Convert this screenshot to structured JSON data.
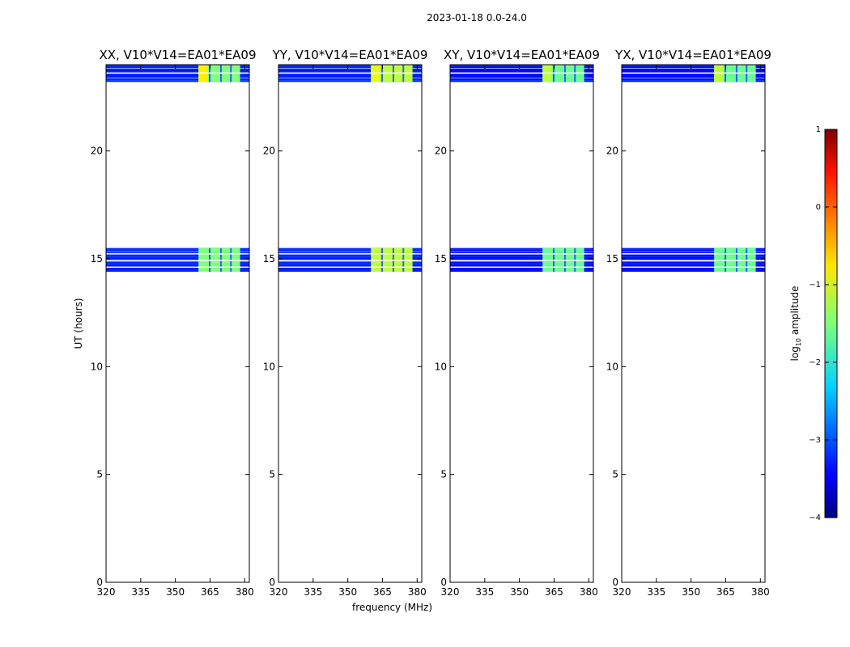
{
  "figure_title": "2023-01-18 0.0-24.0",
  "colors": {
    "low": "#0000c8",
    "mid": "#33e0ff",
    "hot": "#7cff80",
    "warm": "#c8ff3a",
    "frame": "#000000"
  },
  "colorbar": {
    "label_prefix": "log",
    "label_sub": "10",
    "label_suffix": " amplitude",
    "ticks": [
      "1",
      "0",
      "−1",
      "−2",
      "−3",
      "−4"
    ],
    "range": [
      -4,
      1
    ],
    "colormap": "jet"
  },
  "chart_data": [
    {
      "type": "heatmap",
      "title": "XX, V10*V14=EA01*EA09",
      "xlabel": "",
      "ylabel": "UT (hours)",
      "xlim": [
        320,
        382
      ],
      "ylim": [
        0,
        24
      ],
      "xticks": [
        "320",
        "335",
        "350",
        "365",
        "380"
      ],
      "yticks": [
        "0",
        "5",
        "10",
        "15",
        "20"
      ],
      "bands": [
        {
          "ut_start": 14.4,
          "ut_end": 15.5,
          "mean_log_amp": -3.2
        },
        {
          "ut_start": 23.2,
          "ut_end": 24.0,
          "mean_log_amp": -3.2
        }
      ],
      "hot_region": {
        "freq_start": 360,
        "freq_end": 378,
        "mean_log_amp": -1.5,
        "peak_log_amp": -0.8
      }
    },
    {
      "type": "heatmap",
      "title": "YY, V10*V14=EA01*EA09",
      "xlabel": "frequency (MHz)",
      "ylabel": "",
      "xlim": [
        320,
        382
      ],
      "ylim": [
        0,
        24
      ],
      "xticks": [
        "320",
        "335",
        "350",
        "365",
        "380"
      ],
      "yticks": [
        "0",
        "5",
        "10",
        "15",
        "20"
      ],
      "bands": [
        {
          "ut_start": 14.4,
          "ut_end": 15.5,
          "mean_log_amp": -3.2
        },
        {
          "ut_start": 23.2,
          "ut_end": 24.0,
          "mean_log_amp": -3.2
        }
      ],
      "hot_region": {
        "freq_start": 360,
        "freq_end": 378,
        "mean_log_amp": -1.2,
        "peak_log_amp": -1.0
      }
    },
    {
      "type": "heatmap",
      "title": "XY, V10*V14=EA01*EA09",
      "xlabel": "",
      "ylabel": "",
      "xlim": [
        320,
        382
      ],
      "ylim": [
        0,
        24
      ],
      "xticks": [
        "320",
        "335",
        "350",
        "365",
        "380"
      ],
      "yticks": [
        "0",
        "5",
        "10",
        "15",
        "20"
      ],
      "bands": [
        {
          "ut_start": 14.4,
          "ut_end": 15.5,
          "mean_log_amp": -3.3
        },
        {
          "ut_start": 23.2,
          "ut_end": 24.0,
          "mean_log_amp": -3.3
        }
      ],
      "hot_region": {
        "freq_start": 360,
        "freq_end": 378,
        "mean_log_amp": -1.6,
        "peak_log_amp": -1.2
      }
    },
    {
      "type": "heatmap",
      "title": "YX, V10*V14=EA01*EA09",
      "xlabel": "",
      "ylabel": "",
      "xlim": [
        320,
        382
      ],
      "ylim": [
        0,
        24
      ],
      "xticks": [
        "320",
        "335",
        "350",
        "365",
        "380"
      ],
      "yticks": [
        "0",
        "5",
        "10",
        "15",
        "20"
      ],
      "bands": [
        {
          "ut_start": 14.4,
          "ut_end": 15.5,
          "mean_log_amp": -3.3
        },
        {
          "ut_start": 23.2,
          "ut_end": 24.0,
          "mean_log_amp": -3.3
        }
      ],
      "hot_region": {
        "freq_start": 360,
        "freq_end": 378,
        "mean_log_amp": -1.6,
        "peak_log_amp": -1.2
      }
    }
  ]
}
